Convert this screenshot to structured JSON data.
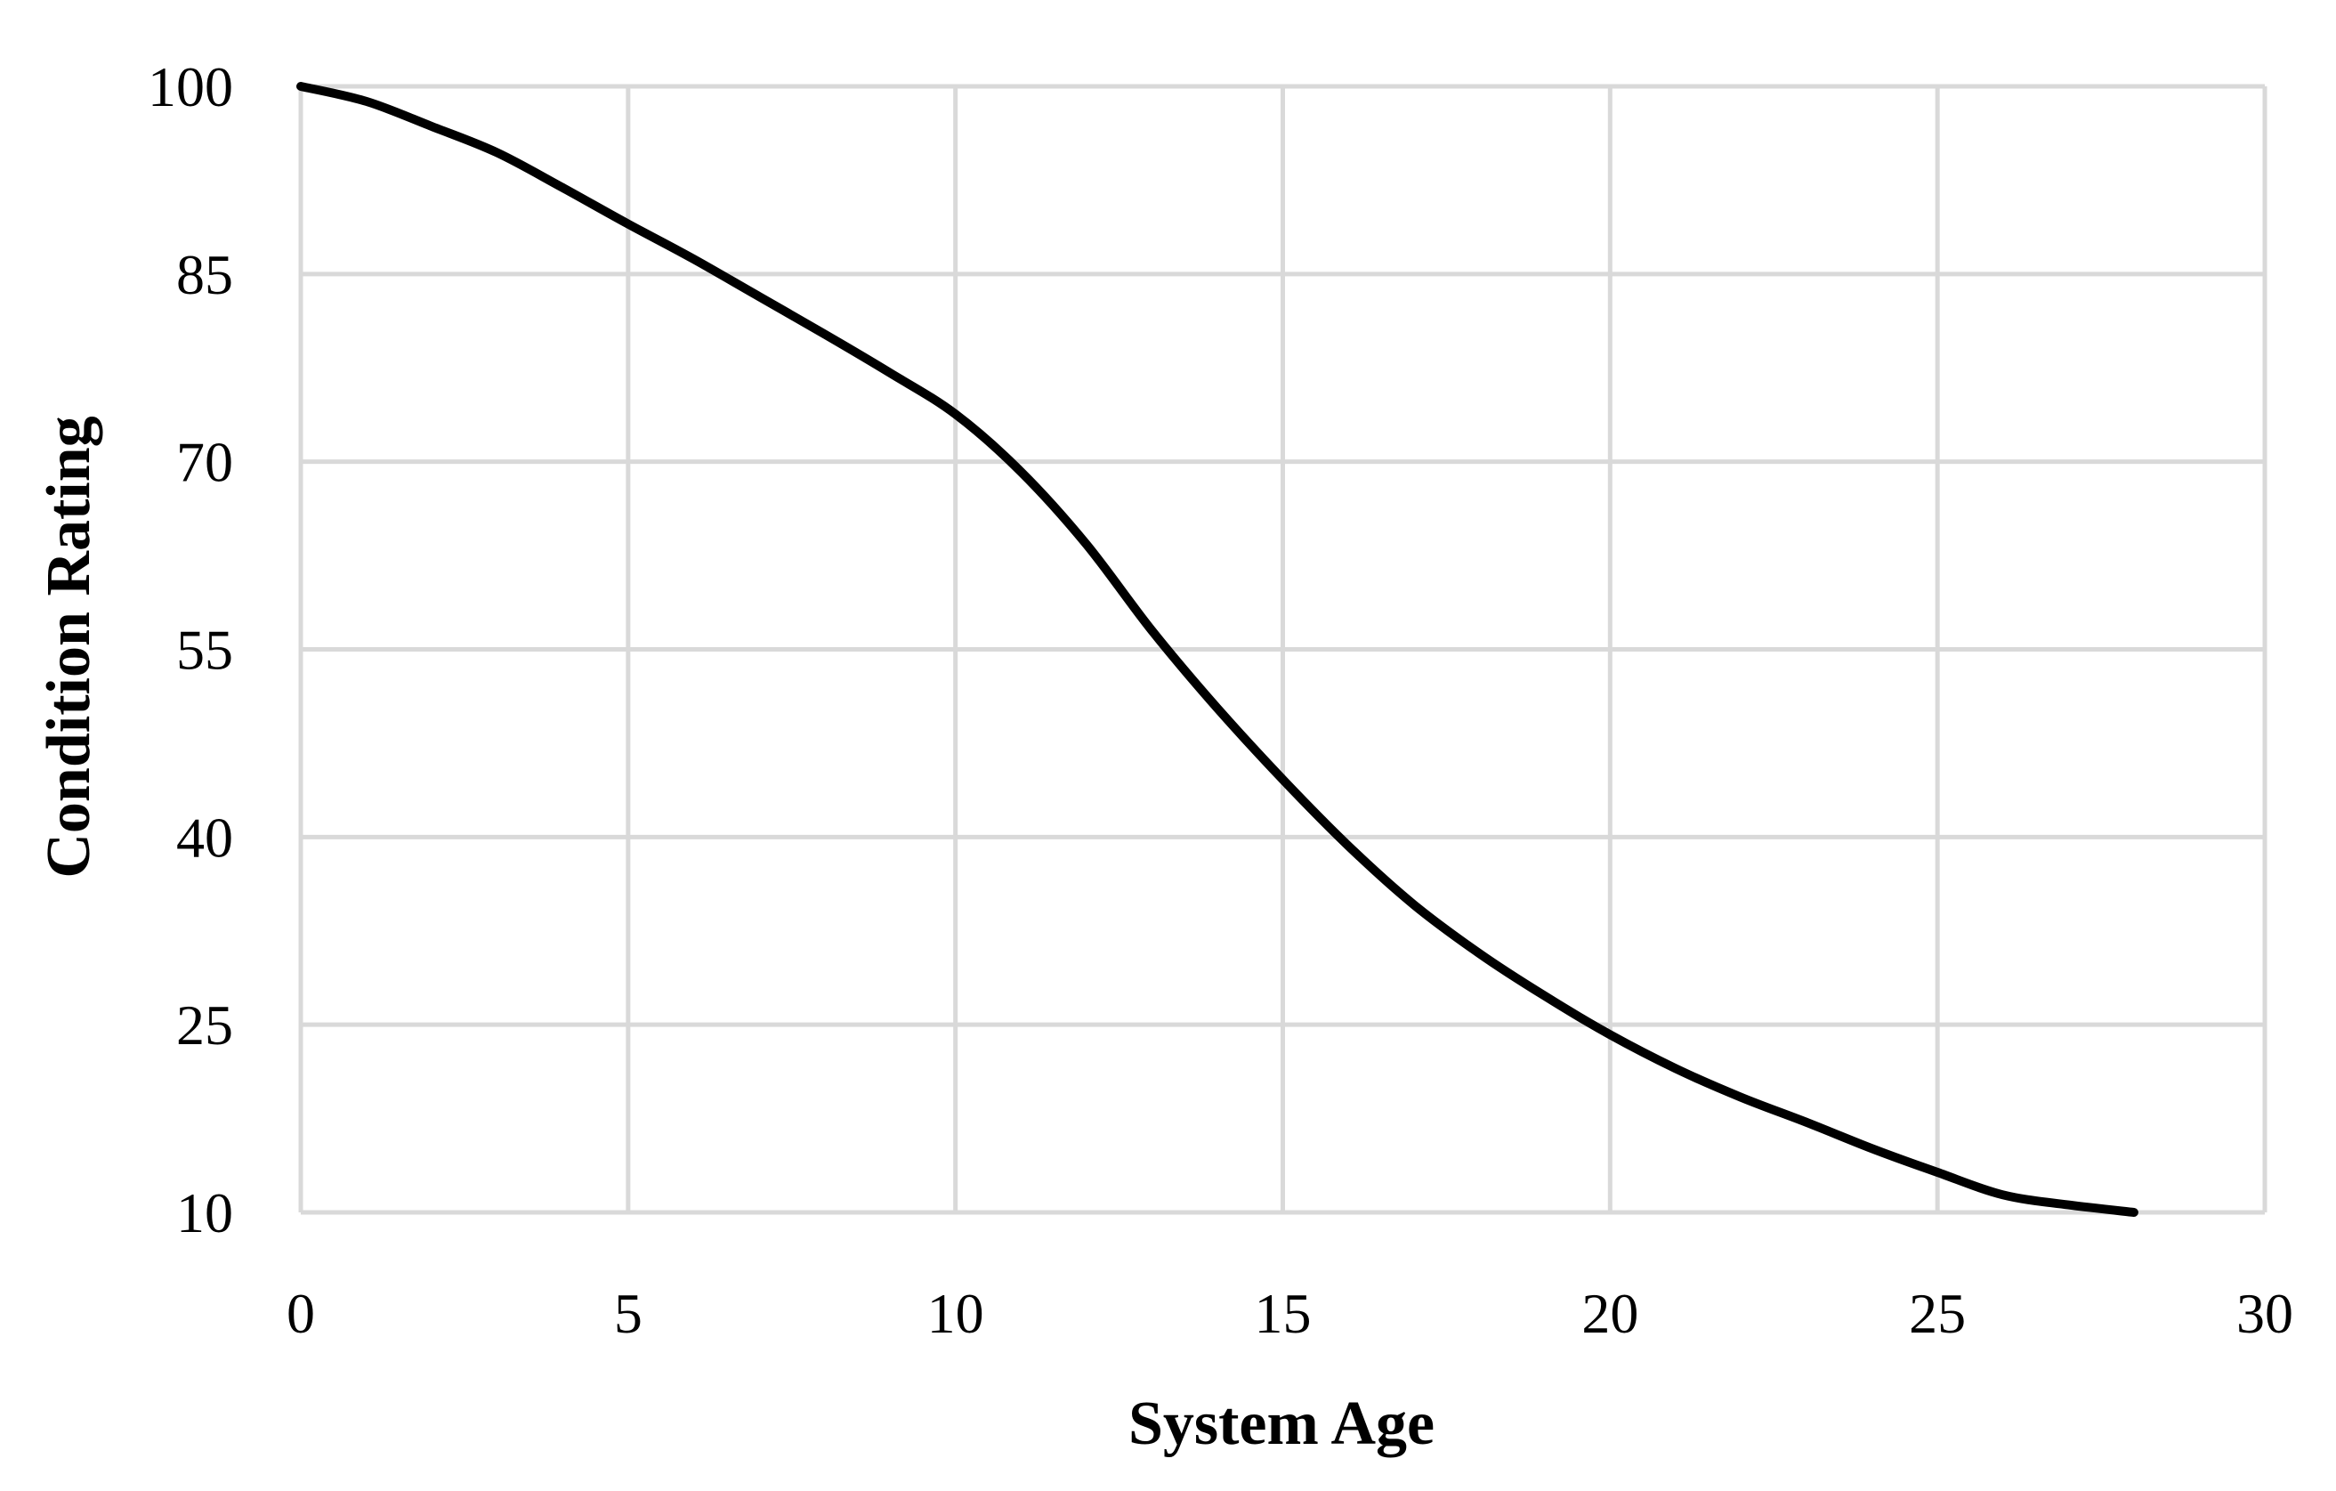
{
  "chart_data": {
    "type": "line",
    "title": "",
    "xlabel": "System Age",
    "ylabel": "Condition Rating",
    "xlim": [
      0,
      30
    ],
    "ylim": [
      10,
      100
    ],
    "xticks": [
      0,
      5,
      10,
      15,
      20,
      25,
      30
    ],
    "yticks": [
      10,
      25,
      40,
      55,
      70,
      85,
      100
    ],
    "grid": true,
    "legend": "none",
    "colors": {
      "line": "#000000",
      "grid": "#d9d9d9",
      "axis": "#d9d9d9"
    },
    "series": [
      {
        "x": [
          0,
          1,
          2,
          3,
          4,
          5,
          6,
          7,
          8,
          9,
          10,
          11,
          12,
          13,
          14,
          15,
          16,
          17,
          18,
          19,
          20,
          21,
          22,
          23,
          24,
          25,
          26,
          27,
          28
        ],
        "values": [
          100,
          98.8,
          96.8,
          94.7,
          91.9,
          89,
          86.2,
          83.2,
          80.2,
          77.1,
          73.8,
          69.2,
          63.4,
          56.5,
          50.3,
          44.6,
          39.3,
          34.6,
          30.7,
          27.3,
          24.2,
          21.5,
          19.2,
          17.2,
          15.1,
          13.2,
          11.4,
          10.6,
          10
        ]
      }
    ]
  }
}
